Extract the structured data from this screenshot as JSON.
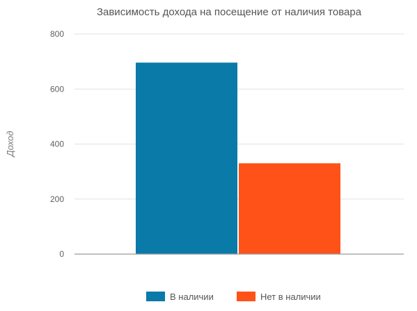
{
  "chart_data": {
    "type": "bar",
    "title": "Зависимость дохода на посещение от наличия товара",
    "xlabel": "",
    "ylabel": "Доход",
    "ylim": [
      0,
      800
    ],
    "yticks": [
      0,
      200,
      400,
      600,
      800
    ],
    "grid": true,
    "legend": "bottom",
    "categories": [
      ""
    ],
    "series": [
      {
        "name": "В наличии",
        "values": [
          696
        ],
        "color": "#0a7aa8"
      },
      {
        "name": "Нет в наличии",
        "values": [
          330
        ],
        "color": "#ff5219"
      }
    ]
  }
}
